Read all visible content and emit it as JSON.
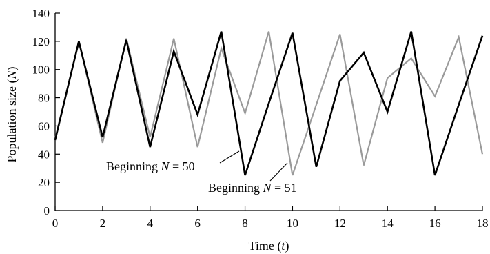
{
  "chart_data": {
    "type": "line",
    "xlabel": "Time (t)",
    "ylabel": "Population size (N)",
    "xlim": [
      0,
      18
    ],
    "ylim": [
      0,
      140
    ],
    "xticks": [
      0,
      2,
      4,
      6,
      8,
      10,
      12,
      14,
      16,
      18
    ],
    "yticks": [
      0,
      20,
      40,
      60,
      80,
      100,
      120,
      140
    ],
    "grid": false,
    "x": [
      0,
      1,
      2,
      3,
      4,
      5,
      6,
      7,
      8,
      9,
      10,
      11,
      12,
      13,
      14,
      15,
      16,
      17,
      18
    ],
    "series": [
      {
        "name": "Beginning N = 50",
        "color": "#000000",
        "values": [
          50,
          120,
          52,
          121,
          45,
          113,
          68,
          127,
          25,
          76,
          126,
          31,
          92,
          112,
          70,
          127,
          25,
          75,
          124
        ]
      },
      {
        "name": "Beginning N = 51",
        "color": "#9a9a9a",
        "values": [
          51,
          120,
          48,
          122,
          52,
          122,
          45,
          115,
          69,
          127,
          25,
          75,
          125,
          32,
          94,
          108,
          81,
          123,
          40
        ]
      }
    ],
    "annotations": [
      {
        "pre": "Beginning ",
        "var": "N",
        "post": " = 50"
      },
      {
        "pre": "Beginning ",
        "var": "N",
        "post": " = 51"
      }
    ]
  }
}
